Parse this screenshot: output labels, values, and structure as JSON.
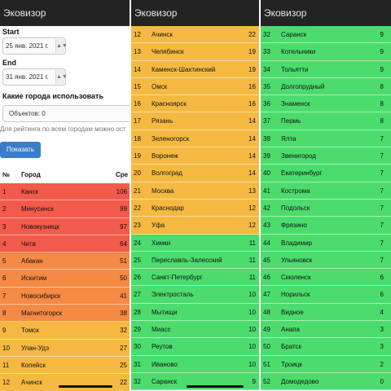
{
  "app_title": "Эковизор",
  "colors": {
    "red": "#f25a4b",
    "orange": "#f58a44",
    "amber": "#f5b942",
    "green": "#4cdc6e"
  },
  "form": {
    "start_label": "Start",
    "start_value": "25 янв. 2021 г.",
    "end_label": "End",
    "end_value": "31 янв. 2021 г.",
    "cities_label": "Какие города использовать",
    "objects_value": "Объектов: 0",
    "hint": "Для рейтинга по всем городам можно ост",
    "show_button": "Показать"
  },
  "table_header": {
    "rank": "№",
    "city": "Город",
    "value": "Сре"
  },
  "panels": [
    {
      "rows": [
        {
          "rank": "1",
          "city": "Канск",
          "value": "106",
          "color": "#f25a4b"
        },
        {
          "rank": "2",
          "city": "Минусинск",
          "value": "99",
          "color": "#f25a4b"
        },
        {
          "rank": "3",
          "city": "Новокузнецк",
          "value": "97",
          "color": "#f25a4b"
        },
        {
          "rank": "4",
          "city": "Чита",
          "value": "64",
          "color": "#f25a4b"
        },
        {
          "rank": "5",
          "city": "Абакан",
          "value": "51",
          "color": "#f58a44"
        },
        {
          "rank": "6",
          "city": "Искитим",
          "value": "50",
          "color": "#f58a44"
        },
        {
          "rank": "7",
          "city": "Новосибирск",
          "value": "41",
          "color": "#f58a44"
        },
        {
          "rank": "8",
          "city": "Магнитогорск",
          "value": "38",
          "color": "#f58a44"
        },
        {
          "rank": "9",
          "city": "Томск",
          "value": "32",
          "color": "#f5b942"
        },
        {
          "rank": "10",
          "city": "Улан-Удэ",
          "value": "27",
          "color": "#f5b942"
        },
        {
          "rank": "11",
          "city": "Копейск",
          "value": "25",
          "color": "#f5b942"
        },
        {
          "rank": "12",
          "city": "Ачинск",
          "value": "22",
          "color": "#f5b942"
        }
      ]
    },
    {
      "rows": [
        {
          "rank": "12",
          "city": "Ачинск",
          "value": "22",
          "color": "#f5b942"
        },
        {
          "rank": "13",
          "city": "Челябинск",
          "value": "19",
          "color": "#f5b942"
        },
        {
          "rank": "14",
          "city": "Каменск-Шахтинский",
          "value": "19",
          "color": "#f5b942"
        },
        {
          "rank": "15",
          "city": "Омск",
          "value": "16",
          "color": "#f5b942"
        },
        {
          "rank": "16",
          "city": "Красноярск",
          "value": "16",
          "color": "#f5b942"
        },
        {
          "rank": "17",
          "city": "Рязань",
          "value": "14",
          "color": "#f5b942"
        },
        {
          "rank": "18",
          "city": "Зеленогорск",
          "value": "14",
          "color": "#f5b942"
        },
        {
          "rank": "19",
          "city": "Воронеж",
          "value": "14",
          "color": "#f5b942"
        },
        {
          "rank": "20",
          "city": "Волгоград",
          "value": "14",
          "color": "#f5b942"
        },
        {
          "rank": "21",
          "city": "Москва",
          "value": "13",
          "color": "#f5b942"
        },
        {
          "rank": "22",
          "city": "Краснодар",
          "value": "12",
          "color": "#f5b942"
        },
        {
          "rank": "23",
          "city": "Уфа",
          "value": "12",
          "color": "#f5b942"
        },
        {
          "rank": "24",
          "city": "Химки",
          "value": "11",
          "color": "#4cdc6e"
        },
        {
          "rank": "25",
          "city": "Переславль-Залесский",
          "value": "11",
          "color": "#4cdc6e"
        },
        {
          "rank": "26",
          "city": "Санкт-Петербург",
          "value": "11",
          "color": "#4cdc6e"
        },
        {
          "rank": "27",
          "city": "Электросталь",
          "value": "10",
          "color": "#4cdc6e"
        },
        {
          "rank": "28",
          "city": "Мытищи",
          "value": "10",
          "color": "#4cdc6e"
        },
        {
          "rank": "29",
          "city": "Миасс",
          "value": "10",
          "color": "#4cdc6e"
        },
        {
          "rank": "30",
          "city": "Реутов",
          "value": "10",
          "color": "#4cdc6e"
        },
        {
          "rank": "31",
          "city": "Иваново",
          "value": "10",
          "color": "#4cdc6e"
        },
        {
          "rank": "32",
          "city": "Саранск",
          "value": "9",
          "color": "#4cdc6e"
        }
      ]
    },
    {
      "rows": [
        {
          "rank": "32",
          "city": "Саранск",
          "value": "9",
          "color": "#4cdc6e"
        },
        {
          "rank": "33",
          "city": "Котельники",
          "value": "9",
          "color": "#4cdc6e"
        },
        {
          "rank": "34",
          "city": "Тольятти",
          "value": "9",
          "color": "#4cdc6e"
        },
        {
          "rank": "35",
          "city": "Долгопрудный",
          "value": "8",
          "color": "#4cdc6e"
        },
        {
          "rank": "36",
          "city": "Знаменск",
          "value": "8",
          "color": "#4cdc6e"
        },
        {
          "rank": "37",
          "city": "Пермь",
          "value": "8",
          "color": "#4cdc6e"
        },
        {
          "rank": "38",
          "city": "Ялта",
          "value": "7",
          "color": "#4cdc6e"
        },
        {
          "rank": "39",
          "city": "Звенигород",
          "value": "7",
          "color": "#4cdc6e"
        },
        {
          "rank": "40",
          "city": "Екатеринбург",
          "value": "7",
          "color": "#4cdc6e"
        },
        {
          "rank": "41",
          "city": "Кострома",
          "value": "7",
          "color": "#4cdc6e"
        },
        {
          "rank": "42",
          "city": "Подольск",
          "value": "7",
          "color": "#4cdc6e"
        },
        {
          "rank": "43",
          "city": "Фрязино",
          "value": "7",
          "color": "#4cdc6e"
        },
        {
          "rank": "44",
          "city": "Владимир",
          "value": "7",
          "color": "#4cdc6e"
        },
        {
          "rank": "45",
          "city": "Ульяновск",
          "value": "7",
          "color": "#4cdc6e"
        },
        {
          "rank": "46",
          "city": "Смоленск",
          "value": "6",
          "color": "#4cdc6e"
        },
        {
          "rank": "47",
          "city": "Норильск",
          "value": "6",
          "color": "#4cdc6e"
        },
        {
          "rank": "48",
          "city": "Видное",
          "value": "4",
          "color": "#4cdc6e"
        },
        {
          "rank": "49",
          "city": "Анапа",
          "value": "3",
          "color": "#4cdc6e"
        },
        {
          "rank": "50",
          "city": "Братск",
          "value": "3",
          "color": "#4cdc6e"
        },
        {
          "rank": "51",
          "city": "Троицк",
          "value": "2",
          "color": "#4cdc6e"
        },
        {
          "rank": "52",
          "city": "Домодедово",
          "value": "0",
          "color": "#4cdc6e"
        }
      ]
    }
  ]
}
